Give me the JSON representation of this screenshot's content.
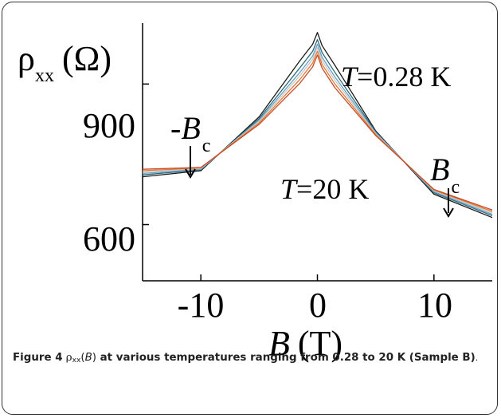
{
  "chart_data": {
    "type": "line",
    "ylabel": {
      "rho": "ρ",
      "sub": "xx",
      "unit": "(Ω)"
    },
    "xlabel": {
      "sym": "B",
      "unit": "(T)"
    },
    "xlim": [
      -15,
      15
    ],
    "ylim": [
      480,
      1030
    ],
    "x_ticks": [
      -10,
      0,
      10
    ],
    "y_ticks": [
      600,
      900
    ],
    "x_tick_labels": [
      "-10",
      "0",
      "10"
    ],
    "y_tick_labels": [
      "600",
      "900"
    ],
    "grid": false,
    "annotations": {
      "t_high": {
        "sym": "T",
        "text": "=0.28 K"
      },
      "t_low": {
        "sym": "T",
        "text": "=20 K"
      },
      "neg_bc": {
        "minus": "-",
        "sym": "B",
        "sub": "c"
      },
      "pos_bc": {
        "sym": "B",
        "sub": "c"
      }
    },
    "series": [
      {
        "color": "#1a1a1a",
        "peak": 1010,
        "at_15": 690,
        "at_10": 705,
        "at_5": 800,
        "at_m10": 715,
        "at_m5": 830
      },
      {
        "color": "#2e6e7a",
        "peak": 995,
        "at_15": 694,
        "at_10": 708,
        "at_5": 798,
        "at_m10": 717,
        "at_m5": 826
      },
      {
        "color": "#6aa0c8",
        "peak": 985,
        "at_15": 697,
        "at_10": 710,
        "at_5": 796,
        "at_m10": 718,
        "at_m5": 823
      },
      {
        "color": "#c8c8c8",
        "peak": 978,
        "at_15": 700,
        "at_10": 712,
        "at_5": 794,
        "at_m10": 720,
        "at_m5": 820
      },
      {
        "color": "#e07a30",
        "peak": 970,
        "at_15": 703,
        "at_10": 714,
        "at_5": 792,
        "at_m10": 721,
        "at_m5": 817
      },
      {
        "color": "#c84a28",
        "peak": 962,
        "at_15": 706,
        "at_10": 715,
        "at_5": 790,
        "at_m10": 722,
        "at_m5": 814
      }
    ],
    "crossing_points": {
      "neg_bc": [
        -11,
        742
      ],
      "pos_bc": [
        11.2,
        657
      ]
    }
  },
  "caption": {
    "figure_label": "Figure 4",
    "rho": "ρ",
    "sub": "xx",
    "arg_open": "(",
    "arg": "B",
    "arg_close": ")",
    "text": " at various temperatures ranging from 0.28 to 20 K (Sample B)",
    "tail": "."
  }
}
